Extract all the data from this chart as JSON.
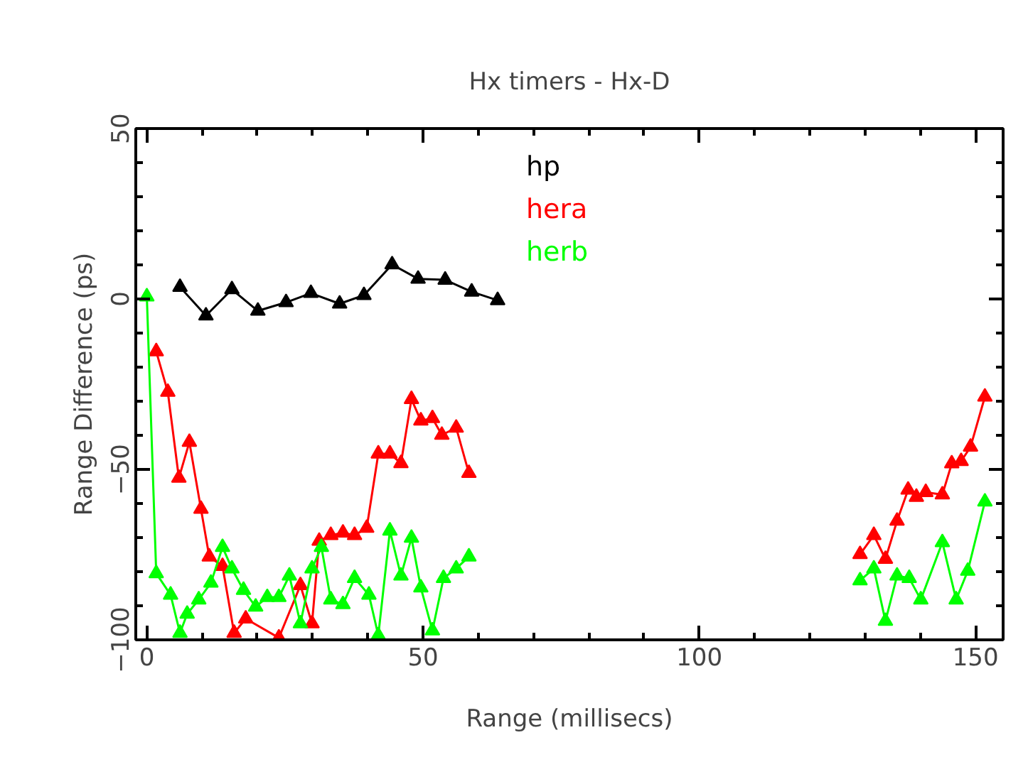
{
  "chart_data": {
    "type": "line",
    "title": "Hx timers - Hx-D",
    "xlabel": "Range (millisecs)",
    "ylabel": "Range Difference (ps)",
    "xlim": [
      -2,
      155
    ],
    "ylim": [
      -100,
      50
    ],
    "xticks": [
      0,
      50,
      100,
      150
    ],
    "yticks": [
      -100,
      -50,
      0,
      50
    ],
    "grid": false,
    "legend": "top",
    "marker": "triangle",
    "line_style": "solid",
    "series": [
      {
        "name": "hp",
        "color": "#000000",
        "x": [
          6,
          10.7,
          15.4,
          20.1,
          25.2,
          29.7,
          34.9,
          39.3,
          44.4,
          49.1,
          54,
          58.8,
          63.5
        ],
        "values": [
          3.5,
          -4.9,
          2.8,
          -3.5,
          -1,
          1.7,
          -1.4,
          1.1,
          10.1,
          5.9,
          5.6,
          2.1,
          -0.4
        ]
      },
      {
        "name": "hera",
        "color": "#ff0000",
        "x": [
          1.7,
          3.8,
          5.8,
          7.7,
          9.8,
          11.3,
          13.7,
          15.8,
          17.9,
          23.9,
          27.8,
          29.9,
          31.2,
          33.3,
          35.5,
          37.6,
          39.8,
          41.9,
          44,
          46,
          47.9,
          49.6,
          51.7,
          53.4,
          56,
          58.3,
          null,
          129.1,
          131.6,
          133.7,
          135.8,
          137.8,
          139.3,
          141,
          144,
          145.7,
          147.4,
          149.1,
          151.7
        ],
        "values": [
          -15.4,
          -27.3,
          -52.5,
          -42,
          -61.6,
          -75.6,
          -78.4,
          -98,
          -93.8,
          -99.4,
          -84,
          -95.2,
          -71,
          -69.3,
          -68.6,
          -69.3,
          -67.2,
          -45.4,
          -45.4,
          -48.2,
          -29.4,
          -35.7,
          -35,
          -39.9,
          -37.8,
          -51.1,
          null,
          -74.9,
          -69.3,
          -76.3,
          -65.1,
          -56,
          -58.1,
          -56.7,
          -57.4,
          -48.3,
          -47.6,
          -43.4,
          -28.7
        ]
      },
      {
        "name": "herb",
        "color": "#00ff00",
        "x": [
          0,
          1.7,
          4.3,
          6,
          7.3,
          9.4,
          11.6,
          13.7,
          15.4,
          17.5,
          19.7,
          21.8,
          23.9,
          25.8,
          27.8,
          29.9,
          31.6,
          33.3,
          35.5,
          37.6,
          40.2,
          41.9,
          44,
          46,
          47.9,
          49.6,
          51.7,
          53.7,
          56,
          58.3,
          null,
          129.1,
          131.6,
          133.7,
          135.8,
          138,
          140.1,
          144,
          146.5,
          148.6,
          151.7
        ],
        "values": [
          0.7,
          -80.5,
          -86.8,
          -98,
          -92.4,
          -88.2,
          -83.3,
          -72.8,
          -79.1,
          -85.4,
          -90.3,
          -87.5,
          -87.5,
          -81.2,
          -95.2,
          -79.1,
          -72.8,
          -88.2,
          -89.6,
          -81.9,
          -86.8,
          -98.7,
          -68,
          -81.2,
          -70.1,
          -84.7,
          -97.3,
          -81.9,
          -79.1,
          -75.6,
          null,
          -82.6,
          -79.1,
          -94.5,
          -81.2,
          -81.9,
          -88.2,
          -71.4,
          -88.2,
          -79.8,
          -59.5
        ]
      }
    ]
  }
}
